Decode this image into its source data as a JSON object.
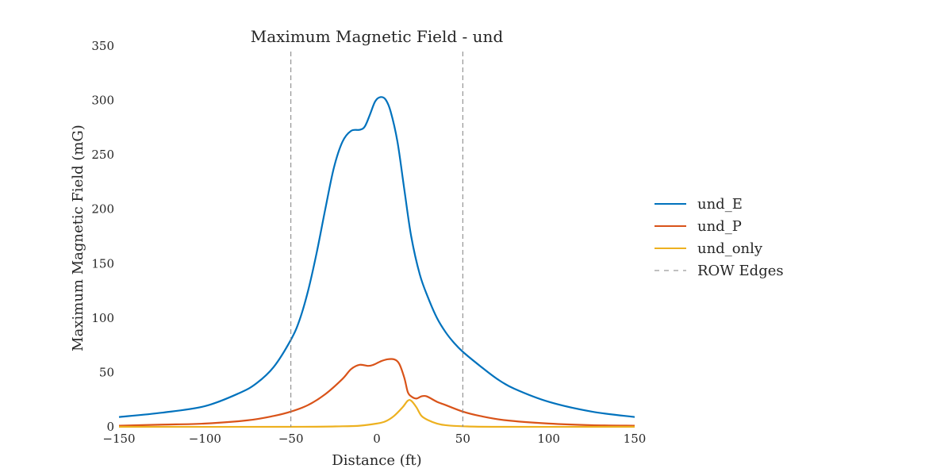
{
  "chart_data": {
    "type": "line",
    "title": "Maximum Magnetic Field - und",
    "xlabel": "Distance (ft)",
    "ylabel": "Maximum Magnetic Field (mG)",
    "xlim": [
      -150,
      150
    ],
    "ylim": [
      0,
      350
    ],
    "xticks": [
      -150,
      -100,
      -50,
      0,
      50,
      100,
      150
    ],
    "xtick_labels": [
      "−150",
      "−100",
      "−50",
      "0",
      "50",
      "100",
      "150"
    ],
    "yticks": [
      0,
      50,
      100,
      150,
      200,
      250,
      300,
      350
    ],
    "ytick_labels": [
      "0",
      "50",
      "100",
      "150",
      "200",
      "250",
      "300",
      "350"
    ],
    "grid": false,
    "legend_position": "right",
    "series": [
      {
        "name": "und_E",
        "color": "#0072BD",
        "style": "solid",
        "points": [
          [
            -150,
            9
          ],
          [
            -125,
            13
          ],
          [
            -100,
            19
          ],
          [
            -80,
            31
          ],
          [
            -70,
            40
          ],
          [
            -60,
            55
          ],
          [
            -50,
            80
          ],
          [
            -45,
            98
          ],
          [
            -40,
            125
          ],
          [
            -35,
            160
          ],
          [
            -30,
            200
          ],
          [
            -25,
            238
          ],
          [
            -20,
            262
          ],
          [
            -15,
            272
          ],
          [
            -10,
            273
          ],
          [
            -7,
            276
          ],
          [
            -4,
            287
          ],
          [
            -1,
            299
          ],
          [
            2,
            303
          ],
          [
            5,
            301
          ],
          [
            8,
            290
          ],
          [
            12,
            262
          ],
          [
            16,
            218
          ],
          [
            20,
            175
          ],
          [
            25,
            140
          ],
          [
            30,
            118
          ],
          [
            35,
            100
          ],
          [
            40,
            87
          ],
          [
            45,
            77
          ],
          [
            50,
            69
          ],
          [
            60,
            56
          ],
          [
            70,
            44
          ],
          [
            80,
            35
          ],
          [
            100,
            23
          ],
          [
            125,
            14
          ],
          [
            150,
            9
          ]
        ]
      },
      {
        "name": "und_P",
        "color": "#D95319",
        "style": "solid",
        "points": [
          [
            -150,
            1
          ],
          [
            -125,
            2
          ],
          [
            -100,
            3
          ],
          [
            -75,
            6
          ],
          [
            -60,
            10
          ],
          [
            -50,
            14
          ],
          [
            -40,
            20
          ],
          [
            -30,
            30
          ],
          [
            -20,
            44
          ],
          [
            -15,
            53
          ],
          [
            -10,
            57
          ],
          [
            -5,
            56
          ],
          [
            -2,
            57
          ],
          [
            2,
            60
          ],
          [
            6,
            62
          ],
          [
            10,
            62
          ],
          [
            13,
            58
          ],
          [
            16,
            45
          ],
          [
            18,
            32
          ],
          [
            20,
            28
          ],
          [
            23,
            26
          ],
          [
            26,
            28
          ],
          [
            29,
            28
          ],
          [
            35,
            23
          ],
          [
            40,
            20
          ],
          [
            50,
            14
          ],
          [
            60,
            10
          ],
          [
            75,
            6
          ],
          [
            100,
            3
          ],
          [
            125,
            1.5
          ],
          [
            150,
            1
          ]
        ]
      },
      {
        "name": "und_only",
        "color": "#EDB120",
        "style": "solid",
        "points": [
          [
            -150,
            0
          ],
          [
            -50,
            0
          ],
          [
            -20,
            0.5
          ],
          [
            -10,
            1
          ],
          [
            0,
            3
          ],
          [
            5,
            5
          ],
          [
            10,
            10
          ],
          [
            15,
            18
          ],
          [
            18,
            24
          ],
          [
            20,
            24
          ],
          [
            23,
            18
          ],
          [
            26,
            10
          ],
          [
            30,
            6
          ],
          [
            35,
            3
          ],
          [
            40,
            1.5
          ],
          [
            50,
            0.5
          ],
          [
            70,
            0
          ],
          [
            150,
            0
          ]
        ]
      },
      {
        "name": "ROW Edges",
        "color": "#808080",
        "style": "dashed",
        "vertical_lines": [
          -50,
          50
        ]
      }
    ]
  }
}
